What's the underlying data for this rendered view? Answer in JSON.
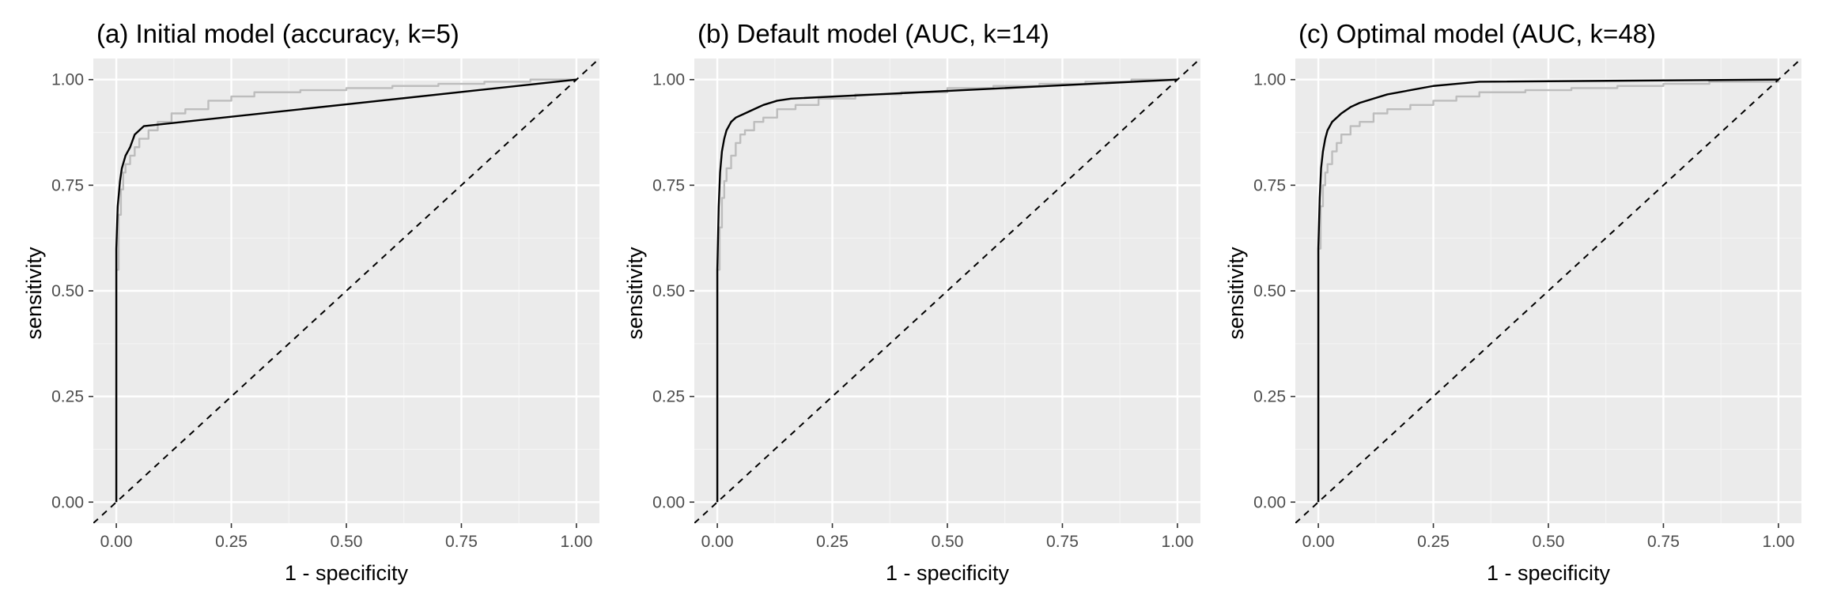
{
  "chart_data": [
    {
      "type": "line",
      "title": "(a) Initial model (accuracy, k=5)",
      "xlabel": "1 - specificity",
      "ylabel": "sensitivity",
      "xlim": [
        0,
        1
      ],
      "ylim": [
        0,
        1
      ],
      "xticks": [
        "0.00",
        "0.25",
        "0.50",
        "0.75",
        "1.00"
      ],
      "yticks": [
        "0.00",
        "0.25",
        "0.50",
        "0.75",
        "1.00"
      ],
      "grid": true,
      "series": [
        {
          "color": "#bdbdbd",
          "style": "step",
          "x": [
            0,
            0,
            0.005,
            0.01,
            0.015,
            0.02,
            0.03,
            0.04,
            0.05,
            0.07,
            0.09,
            0.12,
            0.15,
            0.2,
            0.25,
            0.3,
            0.4,
            0.5,
            0.6,
            0.7,
            0.8,
            0.9,
            1.0
          ],
          "y": [
            0,
            0.55,
            0.68,
            0.74,
            0.78,
            0.8,
            0.82,
            0.84,
            0.86,
            0.88,
            0.9,
            0.92,
            0.93,
            0.95,
            0.96,
            0.97,
            0.975,
            0.98,
            0.985,
            0.99,
            0.995,
            1.0,
            1.0
          ]
        },
        {
          "color": "#000000",
          "style": "line",
          "x": [
            0,
            0,
            0.003,
            0.008,
            0.012,
            0.02,
            0.03,
            0.04,
            0.06,
            1.0
          ],
          "y": [
            0,
            0.6,
            0.7,
            0.76,
            0.79,
            0.82,
            0.84,
            0.87,
            0.89,
            1.0
          ]
        },
        {
          "color": "#000000",
          "style": "dashed",
          "x": [
            -0.05,
            1.05
          ],
          "y": [
            -0.05,
            1.05
          ]
        }
      ]
    },
    {
      "type": "line",
      "title": "(b) Default model (AUC, k=14)",
      "xlabel": "1 - specificity",
      "ylabel": "sensitivity",
      "xlim": [
        0,
        1
      ],
      "ylim": [
        0,
        1
      ],
      "xticks": [
        "0.00",
        "0.25",
        "0.50",
        "0.75",
        "1.00"
      ],
      "yticks": [
        "0.00",
        "0.25",
        "0.50",
        "0.75",
        "1.00"
      ],
      "grid": true,
      "series": [
        {
          "color": "#bdbdbd",
          "style": "step",
          "x": [
            0,
            0,
            0.005,
            0.01,
            0.015,
            0.02,
            0.03,
            0.04,
            0.05,
            0.06,
            0.08,
            0.1,
            0.13,
            0.17,
            0.22,
            0.3,
            0.4,
            0.5,
            0.6,
            0.7,
            0.8,
            0.9,
            1.0
          ],
          "y": [
            0,
            0.55,
            0.65,
            0.72,
            0.76,
            0.79,
            0.82,
            0.85,
            0.87,
            0.88,
            0.9,
            0.91,
            0.93,
            0.94,
            0.955,
            0.965,
            0.97,
            0.98,
            0.985,
            0.99,
            0.995,
            1.0,
            1.0
          ]
        },
        {
          "color": "#000000",
          "style": "line",
          "x": [
            0,
            0,
            0.003,
            0.006,
            0.01,
            0.015,
            0.02,
            0.03,
            0.04,
            0.06,
            0.08,
            0.1,
            0.13,
            0.16,
            1.0
          ],
          "y": [
            0,
            0.55,
            0.7,
            0.78,
            0.83,
            0.86,
            0.88,
            0.9,
            0.91,
            0.92,
            0.93,
            0.94,
            0.95,
            0.955,
            1.0
          ]
        },
        {
          "color": "#000000",
          "style": "dashed",
          "x": [
            -0.05,
            1.05
          ],
          "y": [
            -0.05,
            1.05
          ]
        }
      ]
    },
    {
      "type": "line",
      "title": "(c) Optimal model (AUC, k=48)",
      "xlabel": "1 - specificity",
      "ylabel": "sensitivity",
      "xlim": [
        0,
        1
      ],
      "ylim": [
        0,
        1
      ],
      "xticks": [
        "0.00",
        "0.25",
        "0.50",
        "0.75",
        "1.00"
      ],
      "yticks": [
        "0.00",
        "0.25",
        "0.50",
        "0.75",
        "1.00"
      ],
      "grid": true,
      "series": [
        {
          "color": "#bdbdbd",
          "style": "step",
          "x": [
            0,
            0,
            0.005,
            0.01,
            0.015,
            0.02,
            0.03,
            0.04,
            0.05,
            0.07,
            0.09,
            0.12,
            0.15,
            0.2,
            0.25,
            0.3,
            0.35,
            0.45,
            0.55,
            0.65,
            0.75,
            0.85,
            1.0
          ],
          "y": [
            0,
            0.6,
            0.7,
            0.75,
            0.78,
            0.8,
            0.83,
            0.85,
            0.87,
            0.89,
            0.9,
            0.92,
            0.93,
            0.94,
            0.95,
            0.96,
            0.97,
            0.975,
            0.98,
            0.985,
            0.99,
            0.995,
            1.0
          ]
        },
        {
          "color": "#000000",
          "style": "line",
          "x": [
            0,
            0,
            0.003,
            0.006,
            0.01,
            0.015,
            0.02,
            0.03,
            0.04,
            0.05,
            0.07,
            0.09,
            0.12,
            0.15,
            0.2,
            0.25,
            0.3,
            0.35,
            1.0
          ],
          "y": [
            0,
            0.6,
            0.72,
            0.79,
            0.83,
            0.86,
            0.88,
            0.9,
            0.91,
            0.92,
            0.935,
            0.945,
            0.955,
            0.965,
            0.975,
            0.985,
            0.99,
            0.995,
            1.0
          ]
        },
        {
          "color": "#000000",
          "style": "dashed",
          "x": [
            -0.05,
            1.05
          ],
          "y": [
            -0.05,
            1.05
          ]
        }
      ]
    }
  ]
}
